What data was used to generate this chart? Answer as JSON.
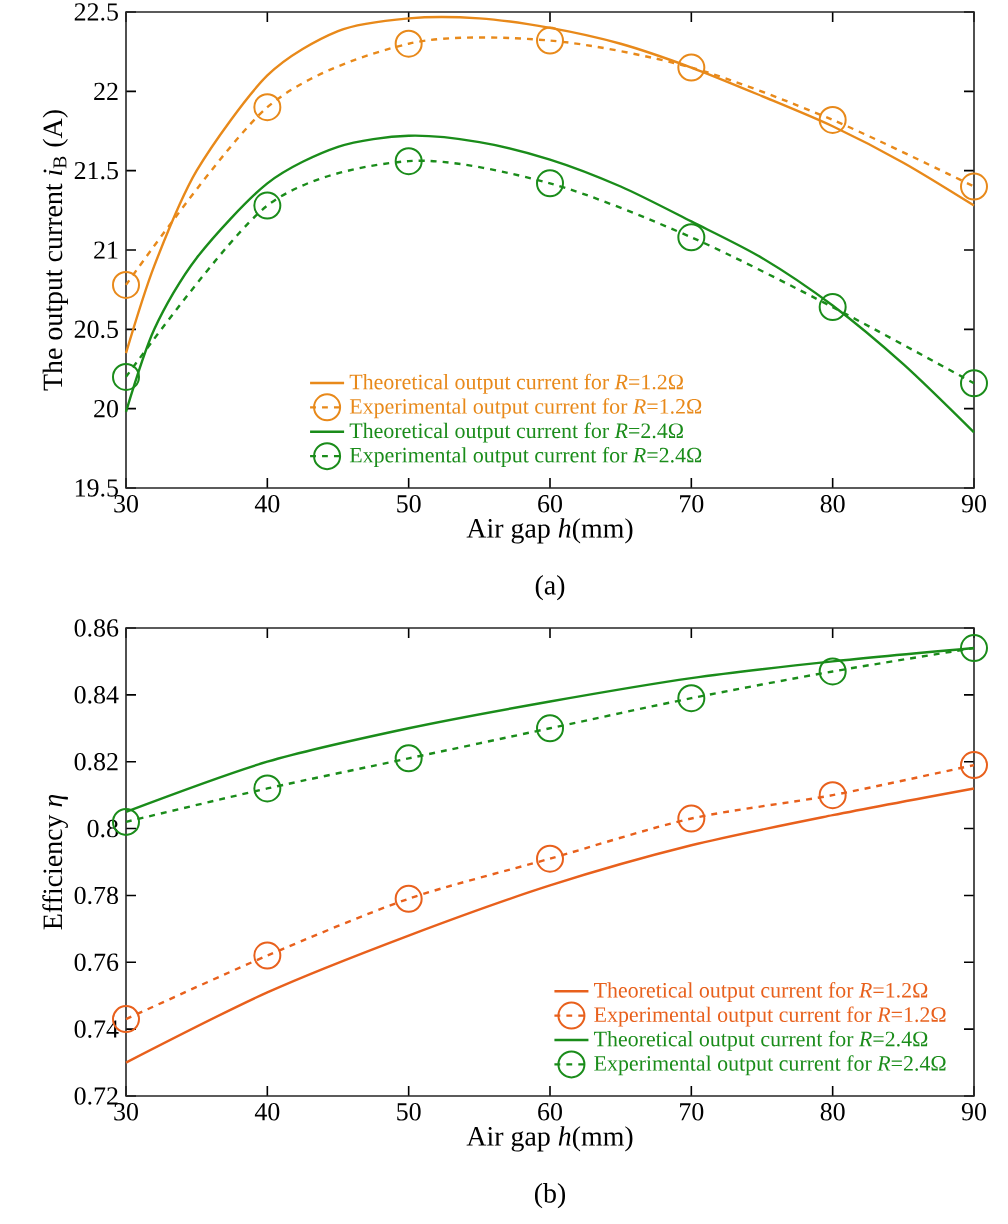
{
  "chart_data": [
    {
      "type": "line",
      "xlabel": "Air gap *h*(mm)",
      "ylabel": "The output current *i*$_{B}$ (A)",
      "annotations": [
        "(a)"
      ],
      "x": [
        30,
        40,
        50,
        60,
        70,
        80,
        90
      ],
      "xlim": [
        30,
        90
      ],
      "xticks": [
        30,
        40,
        50,
        60,
        70,
        80,
        90
      ],
      "ylim": [
        19.5,
        22.5
      ],
      "yticks": [
        19.5,
        20,
        20.5,
        21,
        21.5,
        22,
        22.5
      ],
      "legend": "bottom",
      "grid": false,
      "series": [
        {
          "name": "Theoretical output current for *R*=1.2Ω",
          "color": "#e8891a",
          "line_style": "solid",
          "marker": "none",
          "x": [
            30,
            32,
            35,
            40,
            45,
            50,
            55,
            60,
            65,
            70,
            75,
            80,
            85,
            90
          ],
          "values": [
            20.35,
            20.9,
            21.5,
            22.1,
            22.38,
            22.46,
            22.46,
            22.4,
            22.3,
            22.15,
            21.97,
            21.78,
            21.55,
            21.28
          ]
        },
        {
          "name": "Experimental output current for *R*=1.2Ω",
          "color": "#e8891a",
          "line_style": "dashed",
          "marker": "circle",
          "values": [
            20.78,
            21.9,
            22.3,
            22.32,
            22.15,
            21.82,
            21.4
          ]
        },
        {
          "name": "Theoretical output current for *R*=2.4Ω",
          "color": "#1a8c1a",
          "line_style": "solid",
          "marker": "none",
          "x": [
            30,
            32,
            35,
            40,
            45,
            50,
            55,
            60,
            65,
            70,
            75,
            80,
            85,
            90
          ],
          "values": [
            19.98,
            20.5,
            20.95,
            21.42,
            21.65,
            21.72,
            21.68,
            21.57,
            21.4,
            21.18,
            20.95,
            20.65,
            20.28,
            19.85
          ]
        },
        {
          "name": "Experimental output current for *R*=2.4Ω",
          "color": "#1a8c1a",
          "line_style": "dashed",
          "marker": "circle",
          "values": [
            20.2,
            21.28,
            21.56,
            21.42,
            21.08,
            20.64,
            20.16
          ]
        }
      ]
    },
    {
      "type": "line",
      "xlabel": "Air gap *h*(mm)",
      "ylabel": "Efficiency *η*",
      "annotations": [
        "(b)"
      ],
      "x": [
        30,
        40,
        50,
        60,
        70,
        80,
        90
      ],
      "xlim": [
        30,
        90
      ],
      "xticks": [
        30,
        40,
        50,
        60,
        70,
        80,
        90
      ],
      "ylim": [
        0.72,
        0.86
      ],
      "yticks": [
        0.72,
        0.74,
        0.76,
        0.78,
        0.8,
        0.82,
        0.84,
        0.86
      ],
      "legend": "bottom right",
      "grid": false,
      "series": [
        {
          "name": "Theoretical output current for *R*=1.2Ω",
          "color": "#e8601c",
          "line_style": "solid",
          "marker": "none",
          "values": [
            0.73,
            0.751,
            0.768,
            0.783,
            0.795,
            0.804,
            0.812
          ]
        },
        {
          "name": "Experimental output current for *R*=1.2Ω",
          "color": "#e8601c",
          "line_style": "dashed",
          "marker": "circle",
          "values": [
            0.743,
            0.762,
            0.779,
            0.791,
            0.803,
            0.81,
            0.819
          ]
        },
        {
          "name": "Theoretical output current for *R*=2.4Ω",
          "color": "#1a8c1a",
          "line_style": "solid",
          "marker": "none",
          "values": [
            0.805,
            0.82,
            0.83,
            0.838,
            0.845,
            0.85,
            0.854
          ]
        },
        {
          "name": "Experimental output current for *R*=2.4Ω",
          "color": "#1a8c1a",
          "line_style": "dashed",
          "marker": "circle",
          "values": [
            0.802,
            0.812,
            0.821,
            0.83,
            0.839,
            0.847,
            0.854
          ]
        }
      ]
    }
  ]
}
